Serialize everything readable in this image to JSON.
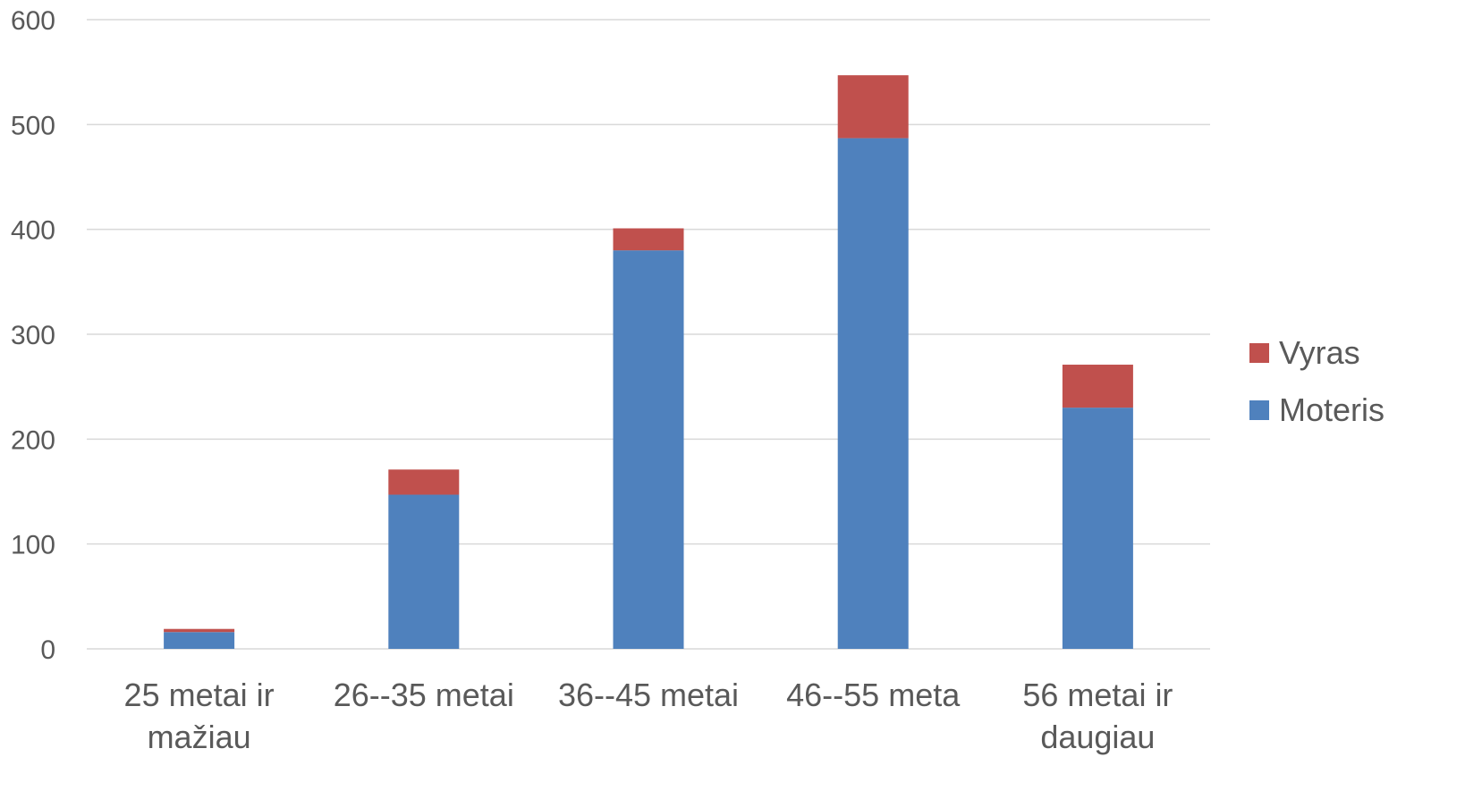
{
  "chart_data": {
    "type": "bar",
    "stacked": true,
    "categories": [
      [
        "25 metai ir",
        "mažiau"
      ],
      [
        "26--35 metai"
      ],
      [
        "36--45 metai"
      ],
      [
        "46--55 meta"
      ],
      [
        "56 metai ir",
        "daugiau"
      ]
    ],
    "series": [
      {
        "name": "Moteris",
        "color": "#4f81bd",
        "values": [
          16,
          147,
          380,
          487,
          230
        ]
      },
      {
        "name": "Vyras",
        "color": "#c0504d",
        "values": [
          3,
          24,
          21,
          60,
          41
        ]
      }
    ],
    "ylim": [
      0,
      600
    ],
    "yticks": [
      0,
      100,
      200,
      300,
      400,
      500,
      600
    ],
    "grid": true,
    "legend_position": "right",
    "legend_order": [
      "Vyras",
      "Moteris"
    ]
  }
}
